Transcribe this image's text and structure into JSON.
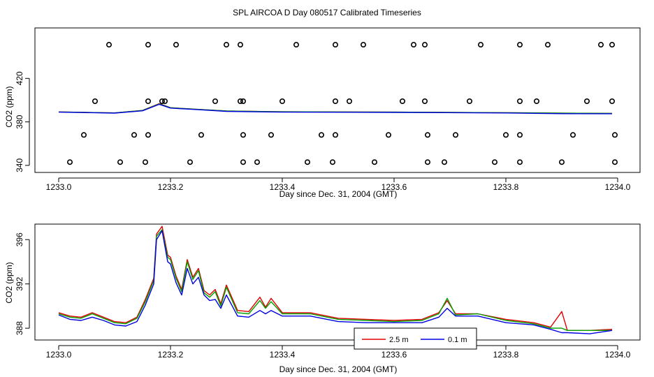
{
  "title": "SPL AIRCOA D  Day 080517  Calibrated Timeseries",
  "chart_data": [
    {
      "type": "line+scatter",
      "xlabel": "Day since Dec. 31, 2004 (GMT)",
      "ylabel": "CO2 (ppm)",
      "xlim": [
        1233.0,
        1234.0
      ],
      "ylim": [
        338,
        460
      ],
      "xticks": [
        1233.0,
        1233.2,
        1233.4,
        1233.6,
        1233.8,
        1234.0
      ],
      "xtick_labels": [
        "1233.0",
        "1233.2",
        "1233.4",
        "1233.6",
        "1233.8",
        "1234.0"
      ],
      "yticks": [
        340,
        380,
        420
      ],
      "ytick_labels": [
        "340",
        "380",
        "420"
      ],
      "series": [
        {
          "name": "red",
          "color": "#e00000",
          "x": [
            1233.0,
            1233.1,
            1233.15,
            1233.18,
            1233.2,
            1233.25,
            1233.3,
            1233.4,
            1233.6,
            1233.8,
            1233.9,
            1233.99
          ],
          "y": [
            389.2,
            388.3,
            390.5,
            396.8,
            393.0,
            391.5,
            390.0,
            389.3,
            389.0,
            388.5,
            388.0,
            387.8
          ]
        },
        {
          "name": "green",
          "color": "#00a000",
          "x": [
            1233.0,
            1233.1,
            1233.15,
            1233.18,
            1233.2,
            1233.25,
            1233.3,
            1233.4,
            1233.6,
            1233.8,
            1233.9,
            1233.99
          ],
          "y": [
            389.2,
            388.3,
            390.5,
            396.5,
            393.0,
            391.5,
            390.0,
            389.3,
            389.0,
            388.5,
            388.0,
            387.8
          ]
        },
        {
          "name": "blue",
          "color": "#0000e0",
          "x": [
            1233.0,
            1233.1,
            1233.15,
            1233.18,
            1233.2,
            1233.25,
            1233.3,
            1233.4,
            1233.6,
            1233.8,
            1233.9,
            1233.99
          ],
          "y": [
            389.0,
            388.1,
            390.2,
            396.2,
            392.7,
            391.2,
            389.7,
            389.0,
            388.7,
            388.2,
            387.6,
            387.5
          ]
        }
      ],
      "markers": {
        "color": "#000000",
        "x": [
          1233.09,
          1233.16,
          1233.21,
          1233.3,
          1233.325,
          1233.425,
          1233.495,
          1233.545,
          1233.635,
          1233.655,
          1233.755,
          1233.825,
          1233.875,
          1233.97,
          1233.99,
          1233.065,
          1233.16,
          1233.185,
          1233.19,
          1233.28,
          1233.325,
          1233.33,
          1233.4,
          1233.495,
          1233.52,
          1233.615,
          1233.655,
          1233.735,
          1233.825,
          1233.855,
          1233.945,
          1233.99,
          1233.045,
          1233.135,
          1233.16,
          1233.255,
          1233.33,
          1233.38,
          1233.47,
          1233.495,
          1233.59,
          1233.66,
          1233.71,
          1233.8,
          1233.825,
          1233.92,
          1233.995,
          1233.02,
          1233.11,
          1233.155,
          1233.235,
          1233.33,
          1233.355,
          1233.445,
          1233.49,
          1233.565,
          1233.66,
          1233.69,
          1233.78,
          1233.825,
          1233.9,
          1233.995
        ],
        "y": [
          451,
          451,
          451,
          451,
          451,
          451,
          451,
          451,
          451,
          451,
          451,
          451,
          451,
          451,
          451,
          399,
          399,
          399,
          399,
          399,
          399,
          399,
          399,
          399,
          399,
          399,
          399,
          399,
          399,
          399,
          399,
          399,
          368,
          368,
          368,
          368,
          368,
          368,
          368,
          368,
          368,
          368,
          368,
          368,
          368,
          368,
          368,
          343,
          343,
          343,
          343,
          343,
          343,
          343,
          343,
          343,
          343,
          343,
          343,
          343,
          343,
          343
        ]
      }
    },
    {
      "type": "line",
      "xlabel": "Day since Dec. 31, 2004 (GMT)",
      "ylabel": "CO2 (ppm)",
      "xlim": [
        1233.0,
        1234.0
      ],
      "ylim": [
        387.0,
        397.4
      ],
      "xticks": [
        1233.0,
        1233.2,
        1233.4,
        1233.6,
        1233.8,
        1234.0
      ],
      "xtick_labels": [
        "1233.0",
        "1233.2",
        "1233.4",
        "1233.6",
        "1233.8",
        "1234.0"
      ],
      "yticks": [
        388,
        392,
        396
      ],
      "ytick_labels": [
        "388",
        "392",
        "396"
      ],
      "legend": {
        "position": "bottom-center",
        "entries": [
          {
            "label": "2.5 m",
            "color": "#e00000"
          },
          {
            "label": "0.1 m",
            "color": "#0000e0"
          }
        ]
      },
      "series": [
        {
          "name": "2.5 m",
          "color": "#e00000",
          "x": [
            1233.0,
            1233.02,
            1233.04,
            1233.06,
            1233.08,
            1233.1,
            1233.12,
            1233.14,
            1233.155,
            1233.17,
            1233.175,
            1233.185,
            1233.195,
            1233.2,
            1233.21,
            1233.22,
            1233.23,
            1233.24,
            1233.25,
            1233.26,
            1233.27,
            1233.28,
            1233.29,
            1233.3,
            1233.32,
            1233.34,
            1233.36,
            1233.37,
            1233.38,
            1233.4,
            1233.45,
            1233.5,
            1233.55,
            1233.6,
            1233.65,
            1233.68,
            1233.695,
            1233.71,
            1233.75,
            1233.8,
            1233.85,
            1233.88,
            1233.9,
            1233.91,
            1233.95,
            1233.99
          ],
          "y": [
            389.4,
            389.1,
            389.0,
            389.4,
            389.0,
            388.6,
            388.5,
            389.0,
            390.6,
            392.5,
            396.5,
            397.2,
            394.6,
            394.4,
            392.7,
            391.5,
            394.2,
            392.6,
            393.4,
            391.4,
            391.0,
            391.5,
            390.2,
            391.9,
            389.6,
            389.5,
            390.8,
            389.9,
            390.7,
            389.4,
            389.4,
            388.9,
            388.8,
            388.7,
            388.8,
            389.4,
            390.5,
            389.3,
            389.3,
            388.8,
            388.5,
            388.1,
            389.5,
            387.8,
            387.8,
            387.9
          ]
        },
        {
          "name": "green",
          "color": "#00a000",
          "x": [
            1233.0,
            1233.02,
            1233.04,
            1233.06,
            1233.08,
            1233.1,
            1233.12,
            1233.14,
            1233.155,
            1233.17,
            1233.175,
            1233.185,
            1233.195,
            1233.2,
            1233.21,
            1233.22,
            1233.23,
            1233.24,
            1233.25,
            1233.26,
            1233.27,
            1233.28,
            1233.29,
            1233.3,
            1233.32,
            1233.34,
            1233.36,
            1233.37,
            1233.38,
            1233.4,
            1233.45,
            1233.5,
            1233.55,
            1233.6,
            1233.65,
            1233.68,
            1233.695,
            1233.71,
            1233.75,
            1233.8,
            1233.85,
            1233.88,
            1233.9,
            1233.91,
            1233.95,
            1233.99
          ],
          "y": [
            389.3,
            389.0,
            388.9,
            389.3,
            388.9,
            388.5,
            388.4,
            388.9,
            390.4,
            392.3,
            396.3,
            396.9,
            394.4,
            394.2,
            392.5,
            391.3,
            394.0,
            392.4,
            393.2,
            391.2,
            390.8,
            391.3,
            390.0,
            391.7,
            389.4,
            389.3,
            390.5,
            389.8,
            390.4,
            389.3,
            389.3,
            388.8,
            388.7,
            388.6,
            388.7,
            389.3,
            390.7,
            389.2,
            389.3,
            388.7,
            388.4,
            388.0,
            388.0,
            387.8,
            387.8,
            387.8
          ]
        },
        {
          "name": "0.1 m",
          "color": "#0000e0",
          "x": [
            1233.0,
            1233.02,
            1233.04,
            1233.06,
            1233.08,
            1233.1,
            1233.12,
            1233.14,
            1233.155,
            1233.17,
            1233.175,
            1233.185,
            1233.195,
            1233.2,
            1233.21,
            1233.22,
            1233.23,
            1233.24,
            1233.25,
            1233.26,
            1233.27,
            1233.28,
            1233.29,
            1233.3,
            1233.32,
            1233.34,
            1233.36,
            1233.37,
            1233.38,
            1233.4,
            1233.45,
            1233.5,
            1233.55,
            1233.6,
            1233.65,
            1233.68,
            1233.695,
            1233.71,
            1233.75,
            1233.8,
            1233.85,
            1233.88,
            1233.9,
            1233.91,
            1233.95,
            1233.99
          ],
          "y": [
            389.2,
            388.8,
            388.7,
            389.0,
            388.7,
            388.3,
            388.2,
            388.6,
            390.1,
            392.0,
            396.0,
            396.8,
            394.0,
            393.8,
            392.1,
            391.0,
            393.4,
            392.0,
            392.6,
            391.0,
            390.5,
            390.6,
            389.8,
            391.0,
            389.1,
            389.0,
            389.6,
            389.3,
            389.6,
            389.1,
            389.1,
            388.6,
            388.5,
            388.5,
            388.5,
            389.0,
            389.8,
            389.1,
            389.1,
            388.5,
            388.3,
            387.9,
            387.6,
            387.6,
            387.5,
            387.8
          ]
        }
      ]
    }
  ]
}
